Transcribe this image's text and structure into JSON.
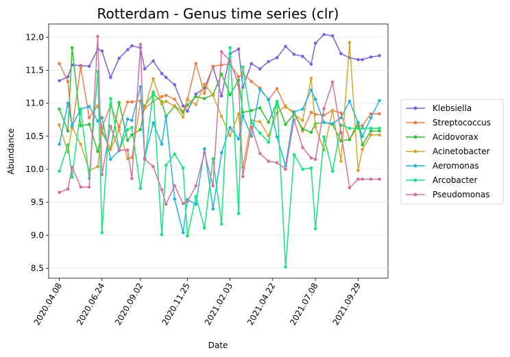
{
  "chart_data": {
    "type": "line",
    "title": "Rotterdam - Genus time series (clr)",
    "xlabel": "Date",
    "ylabel": "Abundance",
    "ylim": [
      8.35,
      12.2
    ],
    "yticks": [
      "8.5",
      "9.0",
      "9.5",
      "10.0",
      "10.5",
      "11.0",
      "11.5",
      "12.0"
    ],
    "ytick_values": [
      8.5,
      9.0,
      9.5,
      10.0,
      10.5,
      11.0,
      11.5,
      12.0
    ],
    "xticks": [
      "2020.04.08",
      "2020.06.24",
      "2020.09.02",
      "2020.11.25",
      "2021.02.03",
      "2021.04.22",
      "2021.07.08",
      "2021.09.29"
    ],
    "xtick_positions": [
      2,
      12,
      21,
      32,
      42,
      52,
      62,
      72
    ],
    "xlim": [
      -0.5,
      79
    ],
    "grid": "horizontal",
    "legend": "right",
    "x": [
      2,
      4,
      5,
      7,
      9,
      11,
      12,
      14,
      16,
      18,
      19,
      21,
      22,
      24,
      26,
      27,
      29,
      31,
      32,
      34,
      36,
      38,
      40,
      42,
      44,
      45,
      47,
      49,
      51,
      53,
      55,
      57,
      59,
      61,
      62,
      64,
      66,
      68,
      70,
      72,
      73,
      75,
      77
    ],
    "series": [
      {
        "name": "Klebsiella",
        "color": "#7b5ee8",
        "values": [
          11.34,
          11.4,
          11.58,
          11.57,
          11.56,
          11.82,
          11.79,
          11.39,
          11.68,
          11.81,
          11.87,
          11.84,
          11.52,
          11.64,
          11.45,
          11.39,
          11.28,
          10.96,
          10.88,
          11.14,
          11.23,
          11.55,
          11.11,
          11.75,
          11.82,
          11.24,
          11.6,
          11.52,
          11.63,
          11.69,
          11.86,
          11.74,
          11.71,
          11.59,
          11.91,
          12.04,
          12.02,
          11.75,
          11.69,
          11.66,
          11.66,
          11.7,
          11.72
        ]
      },
      {
        "name": "Streptococcus",
        "color": "#f07e4a",
        "values": [
          11.6,
          11.33,
          10.62,
          11.55,
          10.78,
          10.96,
          10.63,
          10.97,
          10.64,
          11.02,
          11.02,
          11.04,
          10.92,
          11.03,
          11.1,
          11.12,
          11.06,
          10.87,
          11.05,
          11.6,
          11.15,
          11.56,
          11.58,
          11.59,
          11.4,
          11.45,
          11.33,
          11.23,
          11.05,
          11.22,
          10.94,
          10.87,
          10.58,
          10.86,
          10.83,
          10.82,
          10.89,
          10.85,
          10.45,
          10.66,
          10.66,
          10.84,
          10.84
        ]
      },
      {
        "name": "Acidovorax",
        "color": "#2cc52c",
        "values": [
          10.91,
          10.58,
          11.84,
          10.66,
          10.68,
          10.27,
          10.56,
          10.31,
          11.01,
          10.44,
          10.52,
          10.6,
          10.96,
          11.14,
          11.02,
          10.8,
          10.96,
          10.86,
          10.97,
          11.1,
          11.07,
          11.13,
          11.44,
          11.13,
          11.35,
          10.86,
          10.89,
          10.93,
          10.71,
          11.02,
          10.68,
          10.84,
          10.61,
          10.56,
          10.69,
          10.71,
          10.68,
          10.43,
          10.45,
          10.71,
          10.37,
          10.58,
          10.58
        ]
      },
      {
        "name": "Acinetobacter",
        "color": "#d4a52a",
        "values": [
          10.67,
          10.26,
          10.64,
          10.38,
          9.98,
          10.04,
          10.6,
          10.3,
          10.6,
          10.16,
          10.18,
          11.02,
          10.92,
          11.37,
          10.99,
          11.03,
          10.95,
          10.79,
          11.06,
          10.98,
          11.29,
          11.12,
          10.8,
          10.51,
          10.84,
          10.03,
          10.74,
          10.72,
          10.51,
          10.85,
          10.96,
          10.83,
          10.74,
          11.38,
          10.64,
          10.29,
          10.89,
          10.12,
          11.92,
          9.98,
          10.3,
          10.52,
          10.52
        ]
      },
      {
        "name": "Aeromonas",
        "color": "#1ab5e6",
        "values": [
          10.38,
          11.0,
          10.66,
          10.91,
          10.95,
          10.73,
          10.78,
          10.15,
          10.28,
          10.76,
          10.74,
          11.25,
          10.17,
          10.7,
          10.38,
          10.8,
          9.55,
          9.04,
          9.54,
          9.47,
          10.31,
          9.4,
          10.25,
          10.63,
          10.46,
          10.81,
          10.5,
          11.21,
          11.06,
          10.49,
          10.05,
          10.87,
          10.91,
          11.2,
          11.06,
          10.71,
          10.69,
          10.78,
          11.03,
          10.7,
          10.5,
          10.78,
          11.04
        ]
      },
      {
        "name": "Arcobacter",
        "color": "#10e87a",
        "values": [
          9.97,
          10.37,
          9.88,
          10.91,
          9.86,
          11.48,
          9.04,
          11.07,
          10.29,
          10.6,
          10.63,
          9.71,
          10.15,
          11.17,
          9.01,
          10.06,
          10.23,
          10.02,
          8.99,
          9.59,
          9.11,
          10.16,
          9.17,
          11.84,
          9.33,
          11.55,
          10.7,
          10.55,
          10.41,
          11.03,
          8.52,
          10.22,
          10.0,
          10.02,
          9.1,
          10.49,
          9.97,
          10.67,
          10.62,
          10.62,
          10.62,
          10.62,
          10.62
        ]
      },
      {
        "name": "Pseudomonas",
        "color": "#d66fa0",
        "values": [
          9.65,
          9.7,
          10.03,
          9.73,
          9.73,
          12.01,
          9.92,
          10.65,
          10.29,
          10.29,
          9.86,
          11.89,
          10.15,
          10.04,
          9.69,
          9.47,
          9.75,
          9.48,
          9.51,
          9.75,
          10.25,
          9.75,
          11.78,
          11.64,
          11.27,
          9.89,
          10.64,
          10.24,
          10.12,
          10.1,
          10.0,
          10.75,
          10.33,
          10.17,
          10.15,
          10.92,
          11.32,
          10.55,
          9.72,
          9.85,
          9.85,
          9.85,
          9.85
        ]
      }
    ]
  }
}
